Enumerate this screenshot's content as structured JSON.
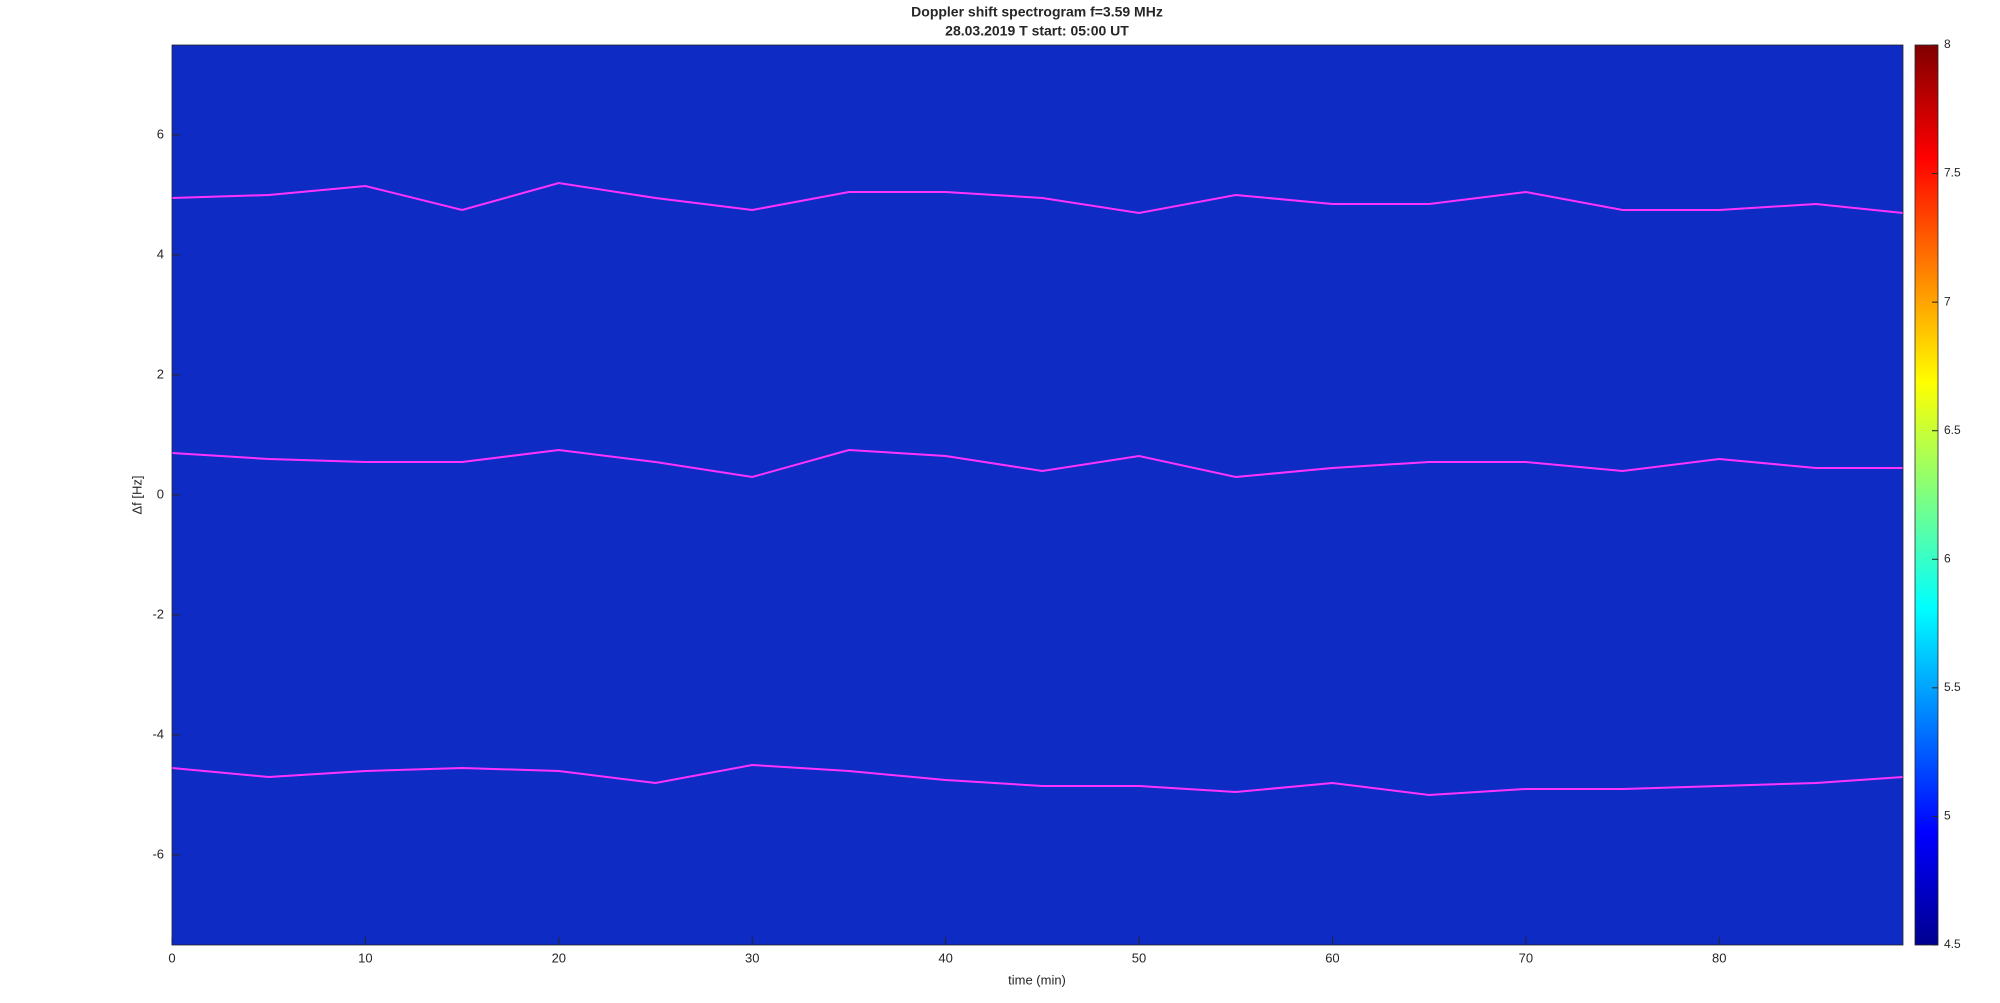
{
  "chart_data": {
    "type": "spectrogram",
    "title": "Doppler shift spectrogram f=3.59 MHz",
    "subtitle": "28.03.2019   T start: 05:00 UT",
    "x_label": "time (min)",
    "y_label": "Δf [Hz]",
    "x": [
      0,
      5,
      10,
      15,
      20,
      25,
      30,
      35,
      40,
      45,
      50,
      55,
      60,
      65,
      70,
      75,
      80,
      85,
      89.5
    ],
    "series": [
      {
        "color": "#ff33ff",
        "values": [
          4.95,
          5.0,
          5.15,
          4.75,
          5.2,
          4.95,
          4.75,
          5.05,
          5.05,
          4.95,
          4.7,
          5.0,
          4.85,
          4.85,
          5.05,
          4.75,
          4.75,
          4.85,
          4.7
        ]
      },
      {
        "color": "#ff33ff",
        "values": [
          0.7,
          0.6,
          0.55,
          0.55,
          0.75,
          0.55,
          0.3,
          0.75,
          0.65,
          0.4,
          0.65,
          0.3,
          0.45,
          0.55,
          0.55,
          0.4,
          0.6,
          0.45,
          0.45
        ]
      },
      {
        "color": "#ff33ff",
        "values": [
          -4.55,
          -4.7,
          -4.6,
          -4.55,
          -4.6,
          -4.8,
          -4.5,
          -4.6,
          -4.75,
          -4.85,
          -4.85,
          -4.95,
          -4.8,
          -5.0,
          -4.9,
          -4.9,
          -4.85,
          -4.8,
          -4.7
        ]
      }
    ],
    "background_color": "#0e2bc4",
    "xlim": [
      0,
      89.5
    ],
    "xticks": [
      0,
      10,
      20,
      30,
      40,
      50,
      60,
      70,
      80
    ],
    "ylim": [
      -7.5,
      7.5
    ],
    "yticks": [
      -6,
      -4,
      -2,
      0,
      2,
      4,
      6
    ],
    "colorbar": {
      "clim": [
        4.5,
        8
      ],
      "ticks": [
        4.5,
        5,
        5.5,
        6,
        6.5,
        7,
        7.5,
        8
      ]
    },
    "grid": false
  }
}
